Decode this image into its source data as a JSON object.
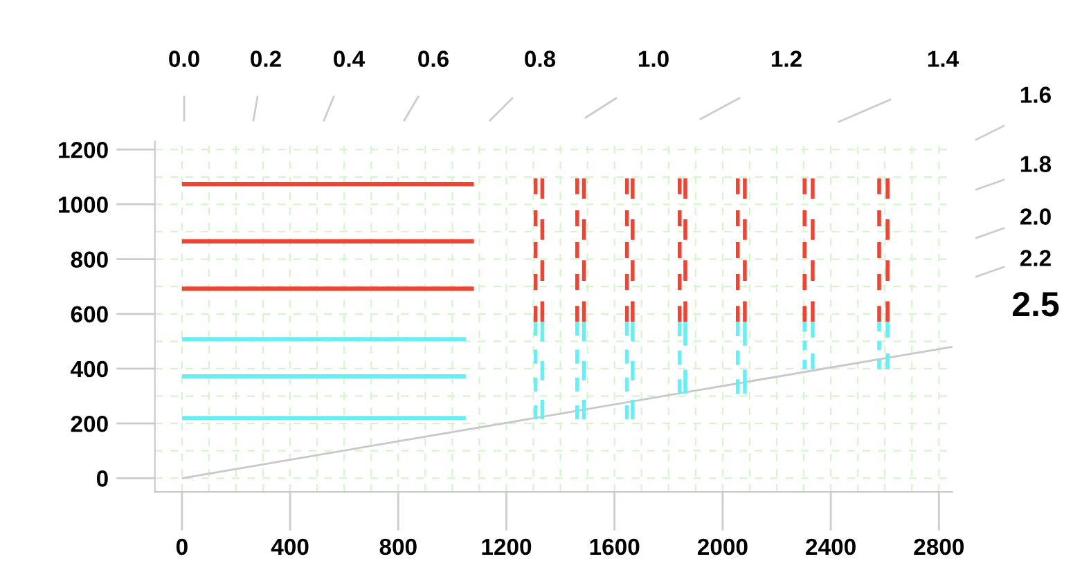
{
  "chart_data": {
    "type": "line",
    "annotations": [
      "0.0",
      "0.2",
      "0.4",
      "0.6",
      "0.8",
      "1.0",
      "1.2",
      "1.4",
      "1.6",
      "1.8",
      "2.0",
      "2.2",
      "2.5"
    ],
    "xlim": [
      -100,
      2850
    ],
    "ylim": [
      -50,
      1230
    ],
    "xticks": [
      0,
      400,
      800,
      1200,
      1600,
      2000,
      2400,
      2800
    ],
    "yticks": [
      0,
      200,
      400,
      600,
      800,
      1000,
      1200
    ],
    "grid": true,
    "marker": "none",
    "series": [
      {
        "color": "#c8c8c8",
        "line_style": "solid",
        "x": [
          0,
          2850
        ],
        "values": [
          0,
          480
        ]
      },
      {
        "color": "#ee4433",
        "line_style": "solid",
        "x": [
          0,
          1080
        ],
        "values": [
          1074,
          1074
        ]
      },
      {
        "color": "#ee4433",
        "line_style": "solid",
        "x": [
          0,
          1080
        ],
        "values": [
          865,
          865
        ]
      },
      {
        "color": "#ee4433",
        "line_style": "solid",
        "x": [
          0,
          1080
        ],
        "values": [
          692,
          692
        ]
      },
      {
        "color": "#66f0f5",
        "line_style": "solid",
        "x": [
          0,
          1050
        ],
        "values": [
          508,
          508
        ]
      },
      {
        "color": "#66f0f5",
        "line_style": "solid",
        "x": [
          0,
          1050
        ],
        "values": [
          372,
          372
        ]
      },
      {
        "color": "#66f0f5",
        "line_style": "solid",
        "x": [
          0,
          1050
        ],
        "values": [
          220,
          220
        ]
      },
      {
        "color": "#ee4433",
        "line_style": "dashed",
        "x": [
          1308,
          1308
        ],
        "values": [
          1095,
          571
        ]
      },
      {
        "color": "#ee4433",
        "line_style": "dashed",
        "x": [
          1333,
          1333
        ],
        "values": [
          1095,
          571
        ]
      },
      {
        "color": "#66f0f5",
        "line_style": "dashed",
        "x": [
          1308,
          1308
        ],
        "values": [
          571,
          215
        ]
      },
      {
        "color": "#66f0f5",
        "line_style": "dashed",
        "x": [
          1333,
          1333
        ],
        "values": [
          571,
          215
        ]
      },
      {
        "color": "#ee4433",
        "line_style": "dashed",
        "x": [
          1462,
          1462
        ],
        "values": [
          1095,
          571
        ]
      },
      {
        "color": "#ee4433",
        "line_style": "dashed",
        "x": [
          1487,
          1487
        ],
        "values": [
          1095,
          571
        ]
      },
      {
        "color": "#66f0f5",
        "line_style": "dashed",
        "x": [
          1462,
          1462
        ],
        "values": [
          571,
          215
        ]
      },
      {
        "color": "#66f0f5",
        "line_style": "dashed",
        "x": [
          1487,
          1487
        ],
        "values": [
          571,
          215
        ]
      },
      {
        "color": "#ee4433",
        "line_style": "dashed",
        "x": [
          1646,
          1646
        ],
        "values": [
          1095,
          571
        ]
      },
      {
        "color": "#ee4433",
        "line_style": "dashed",
        "x": [
          1667,
          1667
        ],
        "values": [
          1095,
          571
        ]
      },
      {
        "color": "#66f0f5",
        "line_style": "dashed",
        "x": [
          1646,
          1646
        ],
        "values": [
          571,
          215
        ]
      },
      {
        "color": "#66f0f5",
        "line_style": "dashed",
        "x": [
          1667,
          1667
        ],
        "values": [
          571,
          215
        ]
      },
      {
        "color": "#ee4433",
        "line_style": "dashed",
        "x": [
          1841,
          1841
        ],
        "values": [
          1095,
          571
        ]
      },
      {
        "color": "#ee4433",
        "line_style": "dashed",
        "x": [
          1862,
          1862
        ],
        "values": [
          1095,
          571
        ]
      },
      {
        "color": "#66f0f5",
        "line_style": "dashed",
        "x": [
          1841,
          1841
        ],
        "values": [
          571,
          309
        ]
      },
      {
        "color": "#66f0f5",
        "line_style": "dashed",
        "x": [
          1862,
          1862
        ],
        "values": [
          571,
          309
        ]
      },
      {
        "color": "#ee4433",
        "line_style": "dashed",
        "x": [
          2056,
          2056
        ],
        "values": [
          1095,
          571
        ]
      },
      {
        "color": "#ee4433",
        "line_style": "dashed",
        "x": [
          2082,
          2082
        ],
        "values": [
          1095,
          571
        ]
      },
      {
        "color": "#66f0f5",
        "line_style": "dashed",
        "x": [
          2056,
          2056
        ],
        "values": [
          571,
          309
        ]
      },
      {
        "color": "#66f0f5",
        "line_style": "dashed",
        "x": [
          2082,
          2082
        ],
        "values": [
          571,
          309
        ]
      },
      {
        "color": "#ee4433",
        "line_style": "dashed",
        "x": [
          2303,
          2303
        ],
        "values": [
          1095,
          571
        ]
      },
      {
        "color": "#ee4433",
        "line_style": "dashed",
        "x": [
          2333,
          2333
        ],
        "values": [
          1095,
          571
        ]
      },
      {
        "color": "#66f0f5",
        "line_style": "dashed",
        "x": [
          2303,
          2303
        ],
        "values": [
          571,
          398
        ]
      },
      {
        "color": "#66f0f5",
        "line_style": "dashed",
        "x": [
          2333,
          2333
        ],
        "values": [
          571,
          398
        ]
      },
      {
        "color": "#ee4433",
        "line_style": "dashed",
        "x": [
          2579,
          2579
        ],
        "values": [
          1095,
          571
        ]
      },
      {
        "color": "#ee4433",
        "line_style": "dashed",
        "x": [
          2610,
          2610
        ],
        "values": [
          1095,
          571
        ]
      },
      {
        "color": "#66f0f5",
        "line_style": "dashed",
        "x": [
          2579,
          2579
        ],
        "values": [
          571,
          398
        ]
      },
      {
        "color": "#66f0f5",
        "line_style": "dashed",
        "x": [
          2610,
          2610
        ],
        "values": [
          571,
          398
        ]
      }
    ]
  }
}
